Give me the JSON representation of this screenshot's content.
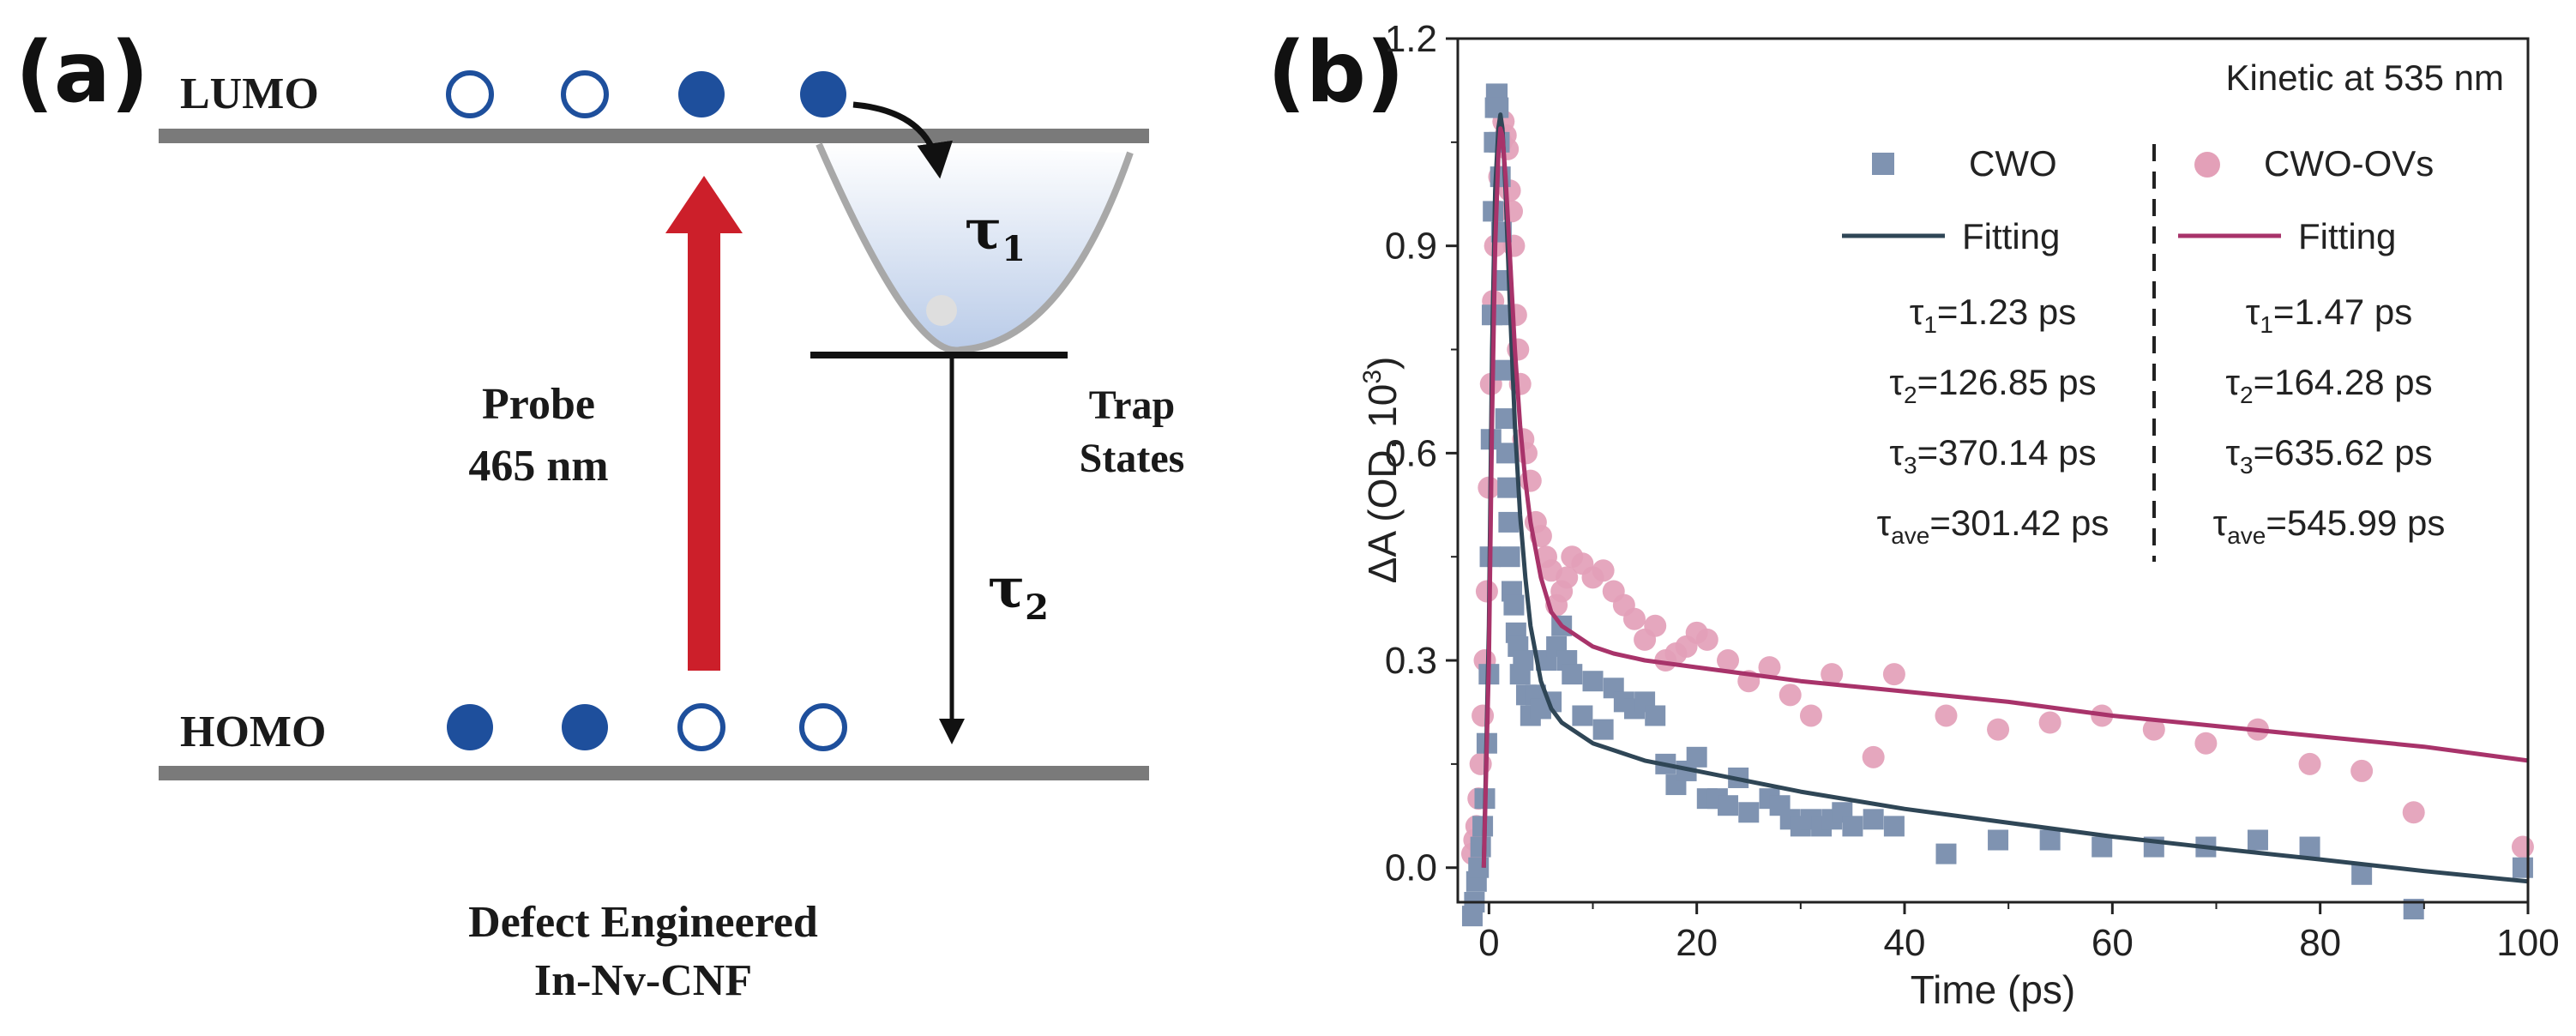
{
  "panel_a": {
    "label": "(a)",
    "lumo_label": "LUMO",
    "homo_label": "HOMO",
    "tau1": "τ",
    "tau1_sub": "1",
    "tau2": "τ",
    "tau2_sub": "2",
    "trap_line1": "Trap",
    "trap_line2": "States",
    "probe_line1": "Probe",
    "probe_line2": "465 nm",
    "caption_line1": "Defect Engineered",
    "caption_line2": "In-Nv-CNF",
    "colors": {
      "electron": "#1e4f9c",
      "arrow": "#cc1f2a",
      "band": "#7a7a7a"
    }
  },
  "panel_b": {
    "label": "(b)",
    "annotation": "Kinetic at 535 nm",
    "legend": {
      "cwo": "CWO",
      "cwo_fit": "Fitting",
      "ov": "CWO-OVs",
      "ov_fit": "Fitting"
    },
    "params_cwo": {
      "t1": {
        "sym": "τ",
        "sub": "1",
        "val": "=1.23 ps"
      },
      "t2": {
        "sym": "τ",
        "sub": "2",
        "val": "=126.85 ps"
      },
      "t3": {
        "sym": "τ",
        "sub": "3",
        "val": "=370.14 ps"
      },
      "tave": {
        "sym": "τ",
        "sub": "ave",
        "val": "=301.42 ps"
      }
    },
    "params_ov": {
      "t1": {
        "sym": "τ",
        "sub": "1",
        "val": "=1.47 ps"
      },
      "t2": {
        "sym": "τ",
        "sub": "2",
        "val": "=164.28 ps"
      },
      "t3": {
        "sym": "τ",
        "sub": "3",
        "val": "=635.62 ps"
      },
      "tave": {
        "sym": "τ",
        "sub": "ave",
        "val": "=545.99 ps"
      }
    },
    "colors": {
      "cwo": "#7f93b1",
      "cwo_fit": "#2f4656",
      "ov": "#e3a0b8",
      "ov_fit": "#a8336a"
    }
  },
  "chart_data": {
    "type": "scatter",
    "title": "",
    "xlabel": "Time (ps)",
    "ylabel_main": "ΔA (OD, 10",
    "ylabel_sup": "3",
    "ylabel_end": ")",
    "xlim": [
      -3,
      100
    ],
    "ylim": [
      -0.05,
      1.2
    ],
    "x_ticks": [
      0,
      20,
      40,
      60,
      80,
      100
    ],
    "y_ticks": [
      0.0,
      0.3,
      0.6,
      0.9,
      1.2
    ],
    "x_tick_labels": [
      "0",
      "20",
      "40",
      "60",
      "80",
      "100"
    ],
    "y_tick_labels": [
      "0.0",
      "0.3",
      "0.6",
      "0.9",
      "1.2"
    ],
    "legend_position": "top-right",
    "series": [
      {
        "name": "CWO",
        "marker": "square",
        "x": [
          -1.6,
          -1.4,
          -1.2,
          -1.0,
          -0.8,
          -0.6,
          -0.4,
          -0.2,
          0.0,
          0.1,
          0.2,
          0.3,
          0.4,
          0.5,
          0.6,
          0.7,
          0.8,
          0.9,
          1.0,
          1.1,
          1.2,
          1.3,
          1.4,
          1.5,
          1.6,
          1.7,
          1.8,
          1.9,
          2.0,
          2.2,
          2.4,
          2.6,
          2.8,
          3.0,
          3.3,
          3.6,
          4.0,
          4.5,
          5.0,
          5.5,
          6.0,
          6.5,
          7.0,
          7.5,
          8.0,
          9.0,
          10.0,
          11.0,
          12.0,
          13.0,
          14.0,
          15.0,
          16.0,
          17.0,
          18.0,
          19.0,
          20.0,
          21.0,
          22.0,
          23.0,
          24.0,
          25.0,
          27.0,
          28.0,
          29.0,
          30.0,
          31.0,
          32.0,
          33.0,
          34.0,
          35.0,
          37.0,
          39.0,
          44.0,
          49.0,
          54.0,
          59.0,
          64.0,
          69.0,
          74.0,
          79.0,
          84.0,
          89.0,
          99.5
        ],
        "y": [
          -0.07,
          -0.05,
          -0.02,
          0.0,
          0.03,
          0.06,
          0.1,
          0.18,
          0.28,
          0.45,
          0.62,
          0.8,
          0.95,
          1.05,
          1.1,
          1.12,
          1.12,
          1.1,
          1.05,
          1.0,
          0.92,
          0.85,
          0.8,
          0.72,
          0.65,
          0.6,
          0.55,
          0.5,
          0.45,
          0.4,
          0.38,
          0.34,
          0.32,
          0.28,
          0.3,
          0.25,
          0.22,
          0.25,
          0.23,
          0.3,
          0.24,
          0.32,
          0.35,
          0.3,
          0.28,
          0.22,
          0.27,
          0.2,
          0.26,
          0.24,
          0.23,
          0.24,
          0.22,
          0.15,
          0.12,
          0.14,
          0.16,
          0.1,
          0.1,
          0.09,
          0.13,
          0.08,
          0.1,
          0.09,
          0.07,
          0.06,
          0.07,
          0.06,
          0.07,
          0.08,
          0.06,
          0.07,
          0.06,
          0.02,
          0.04,
          0.04,
          0.03,
          0.03,
          0.03,
          0.04,
          0.03,
          -0.01,
          -0.06,
          0.0
        ]
      },
      {
        "name": "CWO-OVs",
        "marker": "circle",
        "x": [
          -1.6,
          -1.4,
          -1.2,
          -1.0,
          -0.8,
          -0.6,
          -0.4,
          -0.2,
          0.0,
          0.2,
          0.4,
          0.6,
          0.8,
          1.0,
          1.2,
          1.4,
          1.6,
          1.8,
          2.0,
          2.2,
          2.4,
          2.6,
          2.8,
          3.0,
          3.3,
          3.6,
          4.0,
          4.5,
          5.0,
          5.5,
          6.0,
          6.5,
          7.0,
          7.5,
          8.0,
          9.0,
          10.0,
          11.0,
          12.0,
          13.0,
          14.0,
          15.0,
          16.0,
          17.0,
          18.0,
          19.0,
          20.0,
          21.0,
          23.0,
          25.0,
          27.0,
          29.0,
          31.0,
          33.0,
          37.0,
          39.0,
          44.0,
          49.0,
          54.0,
          59.0,
          64.0,
          69.0,
          74.0,
          79.0,
          84.0,
          89.0,
          99.5
        ],
        "y": [
          0.02,
          0.04,
          0.06,
          0.1,
          0.15,
          0.22,
          0.3,
          0.4,
          0.55,
          0.7,
          0.82,
          0.9,
          0.95,
          1.0,
          1.05,
          1.08,
          1.06,
          1.04,
          0.98,
          0.95,
          0.9,
          0.8,
          0.75,
          0.7,
          0.62,
          0.6,
          0.56,
          0.5,
          0.48,
          0.45,
          0.43,
          0.38,
          0.4,
          0.42,
          0.45,
          0.44,
          0.42,
          0.43,
          0.4,
          0.38,
          0.36,
          0.33,
          0.35,
          0.3,
          0.31,
          0.32,
          0.34,
          0.33,
          0.3,
          0.27,
          0.29,
          0.25,
          0.22,
          0.28,
          0.16,
          0.28,
          0.22,
          0.2,
          0.21,
          0.22,
          0.2,
          0.18,
          0.2,
          0.15,
          0.14,
          0.08,
          0.03
        ]
      },
      {
        "name": "Fitting",
        "of": "CWO",
        "type": "line",
        "x": [
          -0.5,
          0.0,
          0.3,
          0.6,
          0.9,
          1.1,
          1.3,
          1.6,
          2.0,
          2.5,
          3.0,
          3.5,
          4.0,
          5.0,
          6.0,
          7.0,
          8.0,
          10.0,
          12.0,
          15.0,
          20.0,
          30.0,
          40.0,
          50.0,
          60.0,
          70.0,
          80.0,
          90.0,
          100.0
        ],
        "y": [
          0.0,
          0.35,
          0.75,
          0.98,
          1.07,
          1.09,
          1.07,
          0.98,
          0.82,
          0.64,
          0.51,
          0.42,
          0.35,
          0.27,
          0.23,
          0.21,
          0.2,
          0.18,
          0.17,
          0.155,
          0.14,
          0.11,
          0.085,
          0.065,
          0.045,
          0.028,
          0.012,
          -0.005,
          -0.02
        ]
      },
      {
        "name": "Fitting",
        "of": "CWO-OVs",
        "type": "line",
        "x": [
          -0.5,
          0.0,
          0.3,
          0.6,
          0.9,
          1.1,
          1.3,
          1.6,
          2.0,
          2.5,
          3.0,
          3.5,
          4.0,
          5.0,
          6.0,
          7.0,
          8.0,
          10.0,
          12.0,
          15.0,
          20.0,
          30.0,
          40.0,
          50.0,
          60.0,
          70.0,
          80.0,
          90.0,
          100.0
        ],
        "y": [
          0.0,
          0.3,
          0.65,
          0.9,
          1.03,
          1.07,
          1.06,
          1.0,
          0.89,
          0.75,
          0.64,
          0.56,
          0.5,
          0.42,
          0.37,
          0.35,
          0.34,
          0.32,
          0.31,
          0.3,
          0.29,
          0.27,
          0.255,
          0.24,
          0.22,
          0.205,
          0.19,
          0.175,
          0.155
        ]
      }
    ]
  }
}
